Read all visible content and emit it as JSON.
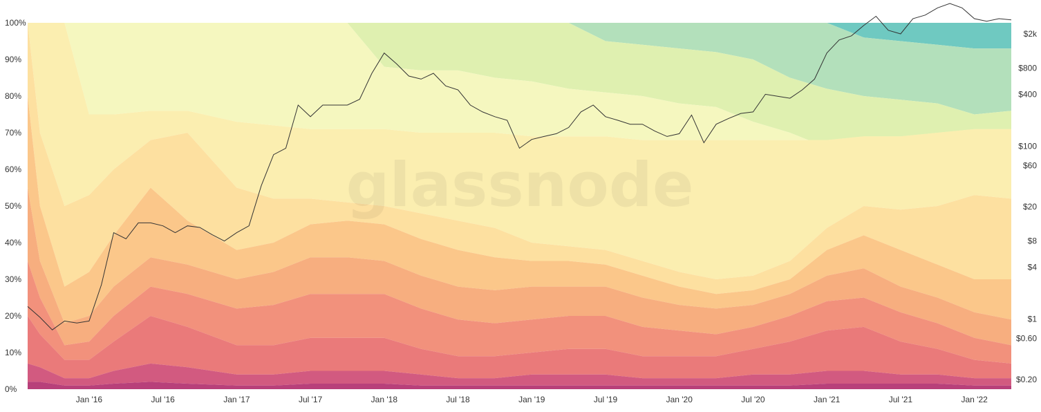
{
  "watermark": "glassnode",
  "chart_data": {
    "type": "area",
    "stacking": "percent",
    "x_axis": {
      "ticks": [
        "Jan '16",
        "Jul '16",
        "Jan '17",
        "Jul '17",
        "Jan '18",
        "Jul '18",
        "Jan '19",
        "Jul '19",
        "Jan '20",
        "Jul '20",
        "Jan '21",
        "Jul '21",
        "Jan '22"
      ],
      "range": [
        "2015-08",
        "2022-04"
      ]
    },
    "y_axis_left": {
      "ticks": [
        "0%",
        "10%",
        "20%",
        "30%",
        "40%",
        "50%",
        "60%",
        "70%",
        "80%",
        "90%",
        "100%"
      ],
      "range": [
        0,
        100
      ]
    },
    "y_axis_right": {
      "scale": "log",
      "ticks": [
        "$0.20",
        "$0.60",
        "$1",
        "$4",
        "$8",
        "$20",
        "$60",
        "$100",
        "$400",
        "$800",
        "$2k"
      ],
      "tick_values": [
        0.2,
        0.6,
        1,
        4,
        8,
        20,
        60,
        100,
        400,
        800,
        2000
      ]
    },
    "dates": [
      "2015-08",
      "2015-09",
      "2015-11",
      "2016-01",
      "2016-03",
      "2016-06",
      "2016-09",
      "2017-01",
      "2017-04",
      "2017-07",
      "2017-10",
      "2018-01",
      "2018-04",
      "2018-07",
      "2018-10",
      "2019-01",
      "2019-04",
      "2019-07",
      "2019-10",
      "2020-01",
      "2020-04",
      "2020-07",
      "2020-10",
      "2021-01",
      "2021-04",
      "2021-07",
      "2021-10",
      "2022-01",
      "2022-04"
    ],
    "band_colors": [
      "#b8407a",
      "#d25a80",
      "#ea7a7a",
      "#f2917c",
      "#f7ae7f",
      "#fbc78a",
      "#fde0a0",
      "#fbeeb0",
      "#f5f7bf",
      "#dff0b0",
      "#b3e0bb",
      "#6fc9c1"
    ],
    "series": [
      {
        "cumulative": [
          2,
          2,
          1,
          1,
          1.5,
          2,
          1.5,
          1,
          1,
          1.5,
          1.5,
          1.5,
          1,
          1,
          1,
          1,
          1,
          1,
          1,
          1,
          1,
          1,
          1,
          1.5,
          1.5,
          1.5,
          1.5,
          1,
          1
        ]
      },
      {
        "cumulative": [
          7,
          6,
          3,
          3,
          5,
          7,
          6,
          4,
          4,
          5,
          5,
          5,
          4,
          3,
          3,
          4,
          4,
          4,
          3,
          3,
          3,
          4,
          4,
          5,
          5,
          4,
          4,
          3,
          3
        ]
      },
      {
        "cumulative": [
          20,
          15,
          8,
          8,
          13,
          20,
          17,
          12,
          12,
          14,
          14,
          14,
          11,
          9,
          9,
          10,
          11,
          11,
          9,
          9,
          9,
          11,
          13,
          16,
          17,
          13,
          11,
          8,
          7
        ]
      },
      {
        "cumulative": [
          35,
          25,
          12,
          13,
          20,
          28,
          26,
          22,
          23,
          26,
          26,
          26,
          22,
          19,
          18,
          19,
          20,
          20,
          17,
          16,
          15,
          17,
          20,
          24,
          25,
          21,
          18,
          14,
          12
        ]
      },
      {
        "cumulative": [
          55,
          35,
          18,
          20,
          28,
          36,
          34,
          30,
          32,
          36,
          36,
          35,
          31,
          28,
          27,
          28,
          28,
          28,
          25,
          23,
          22,
          23,
          26,
          31,
          33,
          28,
          25,
          21,
          19
        ]
      },
      {
        "cumulative": [
          80,
          50,
          28,
          32,
          42,
          55,
          46,
          38,
          40,
          45,
          46,
          45,
          41,
          38,
          36,
          35,
          35,
          34,
          31,
          28,
          26,
          27,
          30,
          38,
          42,
          38,
          34,
          30,
          30
        ]
      },
      {
        "cumulative": [
          100,
          70,
          50,
          53,
          60,
          68,
          70,
          55,
          52,
          52,
          51,
          50,
          48,
          46,
          44,
          40,
          39,
          38,
          35,
          32,
          30,
          31,
          35,
          44,
          50,
          49,
          50,
          53,
          52
        ]
      },
      {
        "cumulative": [
          100,
          100,
          100,
          75,
          75,
          76,
          76,
          73,
          72,
          71,
          71,
          71,
          70,
          70,
          70,
          69,
          69,
          69,
          68,
          68,
          68,
          68,
          68,
          68,
          69,
          69,
          70,
          71,
          71
        ]
      },
      {
        "cumulative": [
          100,
          100,
          100,
          100,
          100,
          100,
          100,
          100,
          100,
          100,
          100,
          88,
          87,
          87,
          85,
          84,
          82,
          81,
          80,
          78,
          77,
          73,
          70,
          66,
          66,
          66,
          67,
          67,
          66
        ]
      },
      {
        "cumulative": [
          100,
          100,
          100,
          100,
          100,
          100,
          100,
          100,
          100,
          100,
          100,
          100,
          100,
          100,
          100,
          100,
          100,
          95,
          94,
          93,
          92,
          90,
          85,
          82,
          80,
          79,
          78,
          75,
          76
        ]
      },
      {
        "cumulative": [
          100,
          100,
          100,
          100,
          100,
          100,
          100,
          100,
          100,
          100,
          100,
          100,
          100,
          100,
          100,
          100,
          100,
          100,
          100,
          100,
          100,
          100,
          100,
          100,
          96,
          95,
          94,
          93,
          93
        ]
      },
      {
        "cumulative": [
          100,
          100,
          100,
          100,
          100,
          100,
          100,
          100,
          100,
          100,
          100,
          100,
          100,
          100,
          100,
          100,
          100,
          100,
          100,
          100,
          100,
          100,
          100,
          100,
          100,
          100,
          100,
          100,
          100
        ]
      }
    ],
    "price_series": {
      "color": "#333333",
      "dates": [
        "2015-08",
        "2015-09",
        "2015-10",
        "2015-11",
        "2015-12",
        "2016-01",
        "2016-02",
        "2016-03",
        "2016-04",
        "2016-05",
        "2016-06",
        "2016-07",
        "2016-08",
        "2016-09",
        "2016-10",
        "2016-11",
        "2016-12",
        "2017-01",
        "2017-02",
        "2017-03",
        "2017-04",
        "2017-05",
        "2017-06",
        "2017-07",
        "2017-08",
        "2017-09",
        "2017-10",
        "2017-11",
        "2017-12",
        "2018-01",
        "2018-02",
        "2018-03",
        "2018-04",
        "2018-05",
        "2018-06",
        "2018-07",
        "2018-08",
        "2018-09",
        "2018-10",
        "2018-11",
        "2018-12",
        "2019-01",
        "2019-02",
        "2019-03",
        "2019-04",
        "2019-05",
        "2019-06",
        "2019-07",
        "2019-08",
        "2019-09",
        "2019-10",
        "2019-11",
        "2019-12",
        "2020-01",
        "2020-02",
        "2020-03",
        "2020-04",
        "2020-05",
        "2020-06",
        "2020-07",
        "2020-08",
        "2020-09",
        "2020-10",
        "2020-11",
        "2020-12",
        "2021-01",
        "2021-02",
        "2021-03",
        "2021-04",
        "2021-05",
        "2021-06",
        "2021-07",
        "2021-08",
        "2021-09",
        "2021-10",
        "2021-11",
        "2021-12",
        "2022-01",
        "2022-02",
        "2022-03",
        "2022-04"
      ],
      "values": [
        1.4,
        1.05,
        0.75,
        0.95,
        0.9,
        0.95,
        2.5,
        10,
        8.5,
        13,
        13,
        12,
        10,
        12,
        11.5,
        9.5,
        8,
        10,
        12,
        35,
        80,
        95,
        300,
        220,
        300,
        300,
        300,
        350,
        700,
        1200,
        900,
        650,
        600,
        700,
        500,
        450,
        300,
        250,
        220,
        200,
        95,
        120,
        130,
        140,
        165,
        250,
        300,
        220,
        200,
        180,
        180,
        150,
        130,
        140,
        230,
        110,
        180,
        210,
        240,
        250,
        400,
        380,
        360,
        450,
        600,
        1200,
        1700,
        1900,
        2500,
        3200,
        2200,
        2000,
        3000,
        3300,
        4000,
        4500,
        4000,
        3000,
        2800,
        3000,
        2900
      ]
    }
  }
}
